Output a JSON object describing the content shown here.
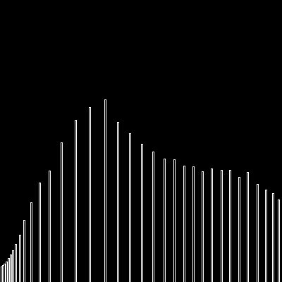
{
  "colors": {
    "background": "#000000",
    "bar_outline": "#ffffff",
    "bar_fill": "#000000"
  },
  "chart_data": {
    "type": "bar",
    "title": "",
    "xlabel": "",
    "ylabel": "",
    "grid": false,
    "legend": "none",
    "ylim": [
      0,
      400
    ],
    "x": [
      1,
      2,
      3,
      4,
      5,
      6,
      7,
      8,
      9,
      10,
      11,
      12,
      13,
      14,
      15,
      16,
      17,
      18,
      19,
      20,
      21,
      22,
      23,
      24,
      25,
      26,
      27,
      28,
      29,
      30,
      31,
      32,
      33,
      34,
      35,
      36,
      37,
      38,
      39,
      40,
      41,
      42,
      43,
      44,
      45,
      46,
      47,
      48,
      49,
      50,
      51,
      52,
      53,
      54,
      55,
      56,
      57,
      58,
      59,
      60,
      61,
      62,
      63,
      64,
      65,
      66,
      67,
      68,
      69,
      70,
      71,
      72,
      73,
      74,
      75,
      76,
      77,
      78,
      79,
      80,
      81,
      82,
      83,
      84,
      85,
      86,
      87,
      88,
      89,
      90,
      91,
      92,
      93,
      94,
      95,
      96,
      97,
      98,
      99,
      100,
      101,
      102,
      103,
      104,
      105,
      106,
      107,
      108,
      109,
      110,
      111,
      112,
      113,
      114,
      115,
      116,
      117,
      118,
      119,
      120,
      121,
      122,
      123,
      124,
      125,
      126,
      127,
      128,
      129,
      130,
      131,
      132,
      133,
      134,
      135,
      136,
      137,
      138,
      139,
      140,
      141,
      142,
      143,
      144,
      145,
      146,
      147,
      148,
      149,
      150,
      151,
      152,
      153,
      154,
      155,
      156,
      157,
      158,
      159,
      160,
      161,
      162,
      163,
      164,
      165,
      166,
      167,
      168,
      169,
      170,
      171,
      172,
      173,
      174,
      175,
      176,
      177,
      178,
      179,
      180,
      181,
      182,
      183,
      184,
      185,
      186,
      187,
      188,
      189,
      190,
      191,
      192,
      193,
      194,
      195,
      196,
      197,
      198,
      199,
      200,
      201,
      202,
      203,
      204,
      205,
      206,
      207,
      208,
      209,
      210,
      211,
      212,
      213,
      214,
      215,
      216,
      217,
      218,
      219,
      220,
      221,
      222,
      223,
      224,
      225,
      226,
      227,
      228,
      229,
      230,
      231,
      232,
      233,
      234,
      235,
      236,
      237,
      238,
      239,
      240,
      241,
      242,
      243,
      244,
      245,
      246,
      247,
      248,
      249,
      250,
      251,
      252,
      253,
      254,
      255,
      256,
      257,
      258,
      259,
      260,
      261,
      262,
      263,
      264,
      265,
      266,
      267,
      268,
      269,
      270,
      271,
      272,
      273,
      274,
      275,
      276,
      277,
      278,
      279,
      280,
      281,
      282,
      283,
      284,
      285,
      286,
      287,
      288,
      289,
      290,
      291,
      292,
      293,
      294,
      295,
      296,
      297,
      298,
      299,
      300,
      301,
      302,
      303,
      304,
      305,
      306,
      307,
      308,
      309,
      310,
      311,
      312,
      313,
      314,
      315,
      316,
      317,
      318,
      319,
      320,
      321,
      322,
      323,
      324,
      325,
      326,
      327,
      328,
      329,
      330,
      331,
      332,
      333,
      334,
      335,
      336,
      337,
      338,
      339,
      340,
      341,
      342,
      343,
      344,
      345,
      346,
      347,
      348,
      349,
      350,
      351,
      352,
      353,
      354,
      355,
      356,
      357,
      358,
      359,
      360,
      361,
      362,
      363,
      364,
      365,
      366,
      367,
      368,
      369,
      370,
      371,
      372,
      373,
      374,
      375,
      376,
      377,
      378,
      379,
      380,
      381,
      382,
      383,
      384,
      385,
      386,
      387,
      388,
      389,
      390,
      391,
      392,
      393,
      394,
      395,
      396,
      397,
      398,
      399
    ],
    "bars": [
      {
        "x": 2,
        "value": 22
      },
      {
        "x": 4,
        "value": 24
      },
      {
        "x": 6,
        "value": 26
      },
      {
        "x": 9,
        "value": 29
      },
      {
        "x": 12,
        "value": 34
      },
      {
        "x": 15,
        "value": 39
      },
      {
        "x": 18,
        "value": 45
      },
      {
        "x": 22,
        "value": 54
      },
      {
        "x": 28,
        "value": 67
      },
      {
        "x": 34,
        "value": 88
      },
      {
        "x": 44,
        "value": 113
      },
      {
        "x": 56,
        "value": 141
      },
      {
        "x": 70,
        "value": 158
      },
      {
        "x": 87,
        "value": 198
      },
      {
        "x": 107,
        "value": 230
      },
      {
        "x": 127,
        "value": 248
      },
      {
        "x": 149,
        "value": 259
      },
      {
        "x": 167,
        "value": 227
      },
      {
        "x": 184,
        "value": 211
      },
      {
        "x": 201,
        "value": 196
      },
      {
        "x": 217,
        "value": 185
      },
      {
        "x": 233,
        "value": 175
      },
      {
        "x": 247,
        "value": 174
      },
      {
        "x": 261,
        "value": 165
      },
      {
        "x": 274,
        "value": 164
      },
      {
        "x": 287,
        "value": 157
      },
      {
        "x": 300,
        "value": 161
      },
      {
        "x": 314,
        "value": 159
      },
      {
        "x": 326,
        "value": 159
      },
      {
        "x": 339,
        "value": 149
      },
      {
        "x": 351,
        "value": 156
      },
      {
        "x": 365,
        "value": 139
      },
      {
        "x": 377,
        "value": 131
      },
      {
        "x": 387,
        "value": 126
      },
      {
        "x": 395,
        "value": 117
      }
    ]
  }
}
